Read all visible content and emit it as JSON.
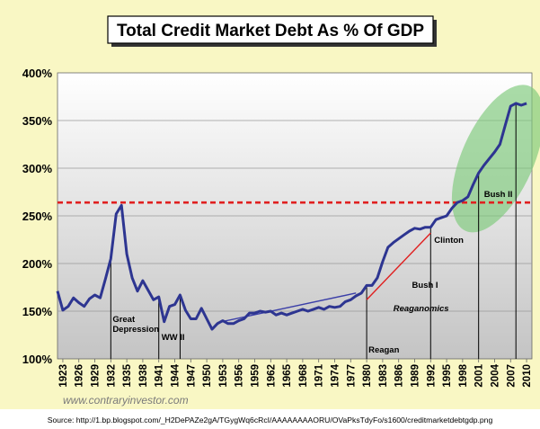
{
  "chart_data": {
    "type": "line",
    "title": "Total Credit Market Debt As % Of GDP",
    "ylim": [
      100,
      400
    ],
    "y_ticks": [
      "100%",
      "150%",
      "200%",
      "250%",
      "300%",
      "350%",
      "400%"
    ],
    "x_ticks": [
      "1923",
      "1926",
      "1929",
      "1932",
      "1935",
      "1938",
      "1941",
      "1944",
      "1947",
      "1950",
      "1953",
      "1956",
      "1959",
      "1962",
      "1965",
      "1968",
      "1971",
      "1974",
      "1977",
      "1980",
      "1983",
      "1986",
      "1989",
      "1992",
      "1995",
      "1998",
      "2001",
      "2004",
      "2007",
      "2010"
    ],
    "grid": "horizontal",
    "series": [
      {
        "x": [
          1922,
          1923,
          1924,
          1925,
          1926,
          1927,
          1928,
          1929,
          1930,
          1931,
          1932,
          1933,
          1934,
          1935,
          1936,
          1937,
          1938,
          1939,
          1940,
          1941,
          1942,
          1943,
          1944,
          1945,
          1946,
          1947,
          1948,
          1949,
          1950,
          1951,
          1952,
          1953,
          1954,
          1955,
          1956,
          1957,
          1958,
          1959,
          1960,
          1961,
          1962,
          1963,
          1964,
          1965,
          1966,
          1967,
          1968,
          1969,
          1970,
          1971,
          1972,
          1973,
          1974,
          1975,
          1976,
          1977,
          1978,
          1979,
          1980,
          1981,
          1982,
          1983,
          1984,
          1985,
          1986,
          1987,
          1988,
          1989,
          1990,
          1991,
          1992,
          1993,
          1994,
          1995,
          1996,
          1997,
          1998,
          1999,
          2000,
          2001,
          2002,
          2003,
          2004,
          2005,
          2006,
          2007,
          2008,
          2009,
          2010
        ],
        "values": [
          171,
          151,
          155,
          164,
          159,
          155,
          163,
          167,
          164,
          184,
          205,
          252,
          261,
          210,
          185,
          171,
          182,
          172,
          162,
          165,
          139,
          155,
          157,
          167,
          151,
          142,
          142,
          153,
          142,
          131,
          137,
          140,
          137,
          137,
          140,
          142,
          148,
          148,
          150,
          149,
          150,
          146,
          148,
          146,
          148,
          150,
          152,
          150,
          152,
          154,
          152,
          155,
          154,
          155,
          160,
          162,
          166,
          169,
          177,
          177,
          185,
          202,
          217,
          222,
          226,
          230,
          234,
          237,
          236,
          238,
          238,
          246,
          248,
          250,
          258,
          264,
          266,
          270,
          283,
          295,
          303,
          310,
          317,
          325,
          345,
          365,
          368,
          366,
          368
        ]
      }
    ],
    "reference_line": {
      "value": 264,
      "style": "dashed",
      "color": "#e02020"
    },
    "trend_lines": [
      {
        "color": "#3b3fa8",
        "from": [
          1952,
          138
        ],
        "to": [
          1978,
          169
        ]
      },
      {
        "color": "#e02020",
        "from": [
          1980,
          162
        ],
        "to": [
          1992,
          232
        ]
      }
    ],
    "annotations": [
      {
        "text": "Great",
        "year": 1932
      },
      {
        "text": "Depression",
        "year": 1932
      },
      {
        "text": "WW II",
        "year": 1941
      },
      {
        "text": "Reaganomics",
        "year": 1985
      },
      {
        "text": "Reagan",
        "year": 1980
      },
      {
        "text": "Bush I",
        "year": 1988
      },
      {
        "text": "Clinton",
        "year": 1992
      },
      {
        "text": "Bush II",
        "year": 2000
      }
    ],
    "watermark": "www.contraryinvestor.com"
  },
  "source_text": "Source:  http://1.bp.blogspot.com/_H2DePAZe2gA/TGygWq6cRcI/AAAAAAAAORU/OVaPksTdyFo/s1600/creditmarketdebtgdp.png",
  "colors": {
    "outer_bg": "#f9f7c4",
    "plot_bg_top": "#ffffff",
    "plot_bg_bottom": "#c4c4c4",
    "series_line": "#2d3591",
    "highlight_ellipse": "#7cc97a"
  }
}
